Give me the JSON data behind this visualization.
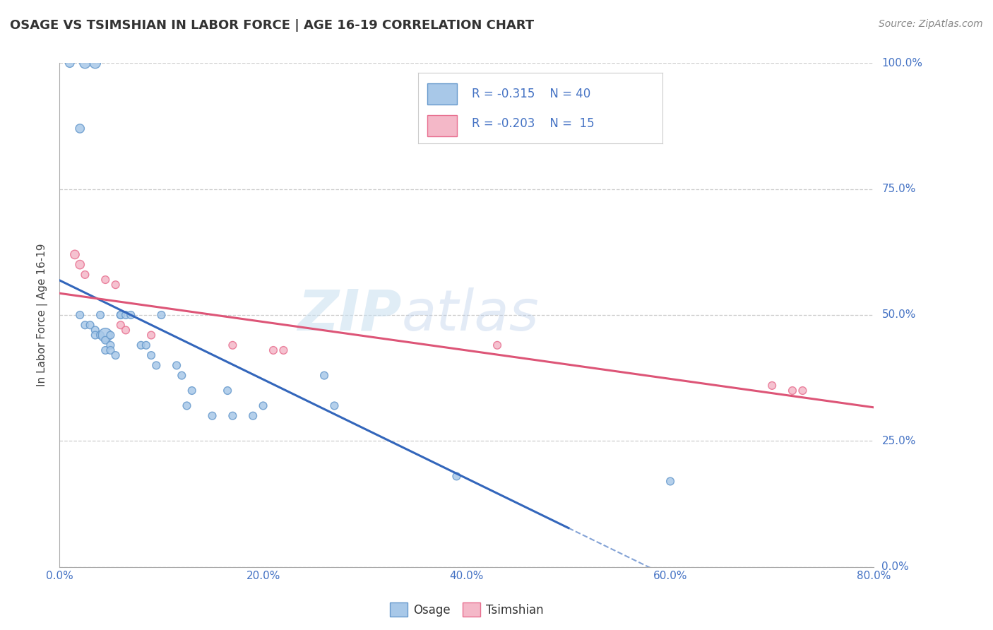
{
  "title": "OSAGE VS TSIMSHIAN IN LABOR FORCE | AGE 16-19 CORRELATION CHART",
  "source_text": "Source: ZipAtlas.com",
  "ylabel": "In Labor Force | Age 16-19",
  "xlim": [
    0.0,
    0.8
  ],
  "ylim": [
    0.0,
    1.0
  ],
  "xticks": [
    0.0,
    0.2,
    0.4,
    0.6,
    0.8
  ],
  "xtick_labels": [
    "0.0%",
    "20.0%",
    "40.0%",
    "60.0%",
    "80.0%"
  ],
  "yticks": [
    0.0,
    0.25,
    0.5,
    0.75,
    1.0
  ],
  "ytick_labels": [
    "0.0%",
    "25.0%",
    "50.0%",
    "75.0%",
    "100.0%"
  ],
  "osage_color": "#a8c8e8",
  "tsimshian_color": "#f4b8c8",
  "osage_edge_color": "#6699cc",
  "tsimshian_edge_color": "#e87090",
  "regression_blue": "#3366bb",
  "regression_pink": "#dd5577",
  "legend_R_osage": "-0.315",
  "legend_N_osage": "40",
  "legend_R_tsimshian": "-0.203",
  "legend_N_tsimshian": "15",
  "osage_x": [
    0.01,
    0.025,
    0.035,
    0.02,
    0.02,
    0.025,
    0.03,
    0.035,
    0.035,
    0.04,
    0.04,
    0.045,
    0.045,
    0.045,
    0.05,
    0.05,
    0.05,
    0.055,
    0.06,
    0.06,
    0.065,
    0.07,
    0.08,
    0.085,
    0.09,
    0.095,
    0.1,
    0.115,
    0.12,
    0.125,
    0.13,
    0.15,
    0.165,
    0.17,
    0.19,
    0.2,
    0.26,
    0.27,
    0.39,
    0.6
  ],
  "osage_y": [
    1.0,
    1.0,
    1.0,
    0.87,
    0.5,
    0.48,
    0.48,
    0.47,
    0.46,
    0.5,
    0.46,
    0.46,
    0.45,
    0.43,
    0.46,
    0.44,
    0.43,
    0.42,
    0.5,
    0.5,
    0.5,
    0.5,
    0.44,
    0.44,
    0.42,
    0.4,
    0.5,
    0.4,
    0.38,
    0.32,
    0.35,
    0.3,
    0.35,
    0.3,
    0.3,
    0.32,
    0.38,
    0.32,
    0.18,
    0.17
  ],
  "osage_size": [
    80,
    120,
    120,
    80,
    60,
    60,
    60,
    60,
    60,
    60,
    60,
    200,
    60,
    60,
    60,
    60,
    60,
    60,
    60,
    60,
    60,
    60,
    60,
    60,
    60,
    60,
    60,
    60,
    60,
    60,
    60,
    60,
    60,
    60,
    60,
    60,
    60,
    60,
    60,
    60
  ],
  "tsimshian_x": [
    0.015,
    0.02,
    0.025,
    0.045,
    0.055,
    0.06,
    0.065,
    0.09,
    0.17,
    0.21,
    0.22,
    0.43,
    0.7,
    0.72,
    0.73
  ],
  "tsimshian_y": [
    0.62,
    0.6,
    0.58,
    0.57,
    0.56,
    0.48,
    0.47,
    0.46,
    0.44,
    0.43,
    0.43,
    0.44,
    0.36,
    0.35,
    0.35
  ],
  "tsimshian_size": [
    80,
    80,
    60,
    60,
    60,
    60,
    60,
    60,
    60,
    60,
    60,
    60,
    60,
    60,
    60
  ],
  "regression_osage_x0": 0.0,
  "regression_osage_x1": 0.5,
  "regression_osage_xdash0": 0.5,
  "regression_osage_xdash1": 0.73,
  "regression_tsimshian_x0": 0.0,
  "regression_tsimshian_x1": 0.8,
  "bottom_legend_labels": [
    "Osage",
    "Tsimshian"
  ]
}
